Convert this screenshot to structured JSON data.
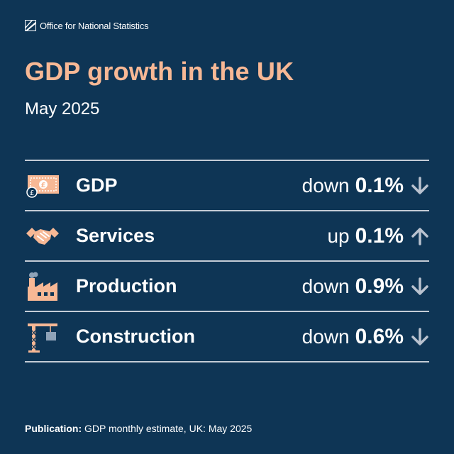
{
  "brand": {
    "name": "Office for National Statistics"
  },
  "header": {
    "title": "GDP growth in the UK",
    "subtitle": "May 2025"
  },
  "rows": [
    {
      "label": "GDP",
      "direction": "down",
      "value": "0.1%",
      "icon": "money-note-icon",
      "arrow": "arrow-down-icon"
    },
    {
      "label": "Services",
      "direction": "up",
      "value": "0.1%",
      "icon": "handshake-icon",
      "arrow": "arrow-up-icon"
    },
    {
      "label": "Production",
      "direction": "down",
      "value": "0.9%",
      "icon": "factory-icon",
      "arrow": "arrow-down-icon"
    },
    {
      "label": "Construction",
      "direction": "down",
      "value": "0.6%",
      "icon": "crane-icon",
      "arrow": "arrow-down-icon"
    }
  ],
  "footer": {
    "prefix": "Publication:",
    "text": "GDP monthly estimate, UK: May 2025"
  },
  "colors": {
    "background": "#0e3555",
    "accent": "#f7b895",
    "arrow": "#b9c2cf",
    "divider": "#c4ccd6"
  }
}
